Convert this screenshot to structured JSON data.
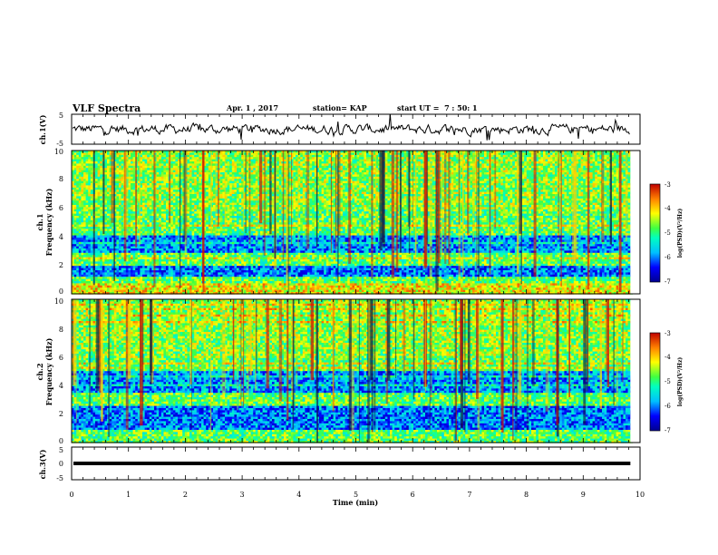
{
  "header": {
    "title": "VLF Spectra",
    "date": "Apr. 1 , 2017",
    "station": "station= KAP",
    "start": "start UT =  7 : 50: 1"
  },
  "chart_data": [
    {
      "name": "ch1-waveform",
      "type": "line",
      "ylabel": "ch.1(V)",
      "ylim": [
        -5,
        5
      ],
      "yticks": [
        "5",
        "-5"
      ],
      "x_range": [
        0,
        9.83
      ],
      "trace_amplitude": 1.2
    },
    {
      "name": "ch1-spectrogram",
      "type": "heatmap",
      "ylabel_top": "ch.1",
      "ylabel": "Frequency (kHz)",
      "ylim": [
        0,
        10
      ],
      "yticks": [
        "0",
        "2",
        "4",
        "6",
        "8",
        "10"
      ],
      "x_range": [
        0,
        9.83
      ],
      "low_band_kHz": [
        3.0,
        4.2
      ],
      "low_band2_kHz": [
        1.3,
        2.1
      ],
      "hot_band_kHz": [
        0,
        0.8
      ],
      "colorbar": {
        "label": "log(PSD)(V²/Hz)",
        "ticks": [
          "-3",
          "-4",
          "-5",
          "-6",
          "-7"
        ],
        "range": [
          -7,
          -3
        ]
      }
    },
    {
      "name": "ch2-spectrogram",
      "type": "heatmap",
      "ylabel_top": "ch.2",
      "ylabel": "Frequency (kHz)",
      "ylim": [
        0,
        10
      ],
      "yticks": [
        "0",
        "2",
        "4",
        "6",
        "8",
        "10"
      ],
      "x_range": [
        0,
        9.83
      ],
      "low_band_kHz": [
        3.6,
        5.0
      ],
      "low_band2_kHz": [
        1.0,
        2.6
      ],
      "colorbar": {
        "label": "log(PSD)(V²/Hz)",
        "ticks": [
          "-3",
          "-4",
          "-5",
          "-6",
          "-7"
        ],
        "range": [
          -7,
          -3
        ]
      }
    },
    {
      "name": "ch3-waveform",
      "type": "line",
      "ylabel": "ch.3(V)",
      "ylim": [
        -5,
        5
      ],
      "yticks": [
        "5",
        "0",
        "-5"
      ],
      "x_range": [
        0,
        9.83
      ],
      "constant_value": 0
    }
  ],
  "xaxis": {
    "label": "Time (min)",
    "range": [
      0,
      10
    ],
    "ticks": [
      "0",
      "1",
      "2",
      "3",
      "4",
      "5",
      "6",
      "7",
      "8",
      "9",
      "10"
    ]
  }
}
